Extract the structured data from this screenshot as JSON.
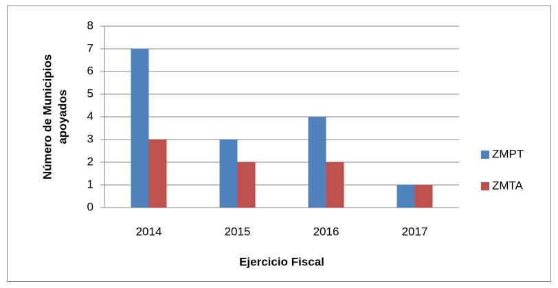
{
  "chart_data": {
    "type": "bar",
    "y_label": [
      "Número de Municipios",
      "apoyados"
    ],
    "x_label": "Ejercicio Fiscal",
    "categories": [
      "2014",
      "2015",
      "2016",
      "2017"
    ],
    "series": [
      {
        "name": "ZMPT",
        "color": "#4f81bd",
        "values": [
          7,
          3,
          4,
          1
        ]
      },
      {
        "name": "ZMTA",
        "color": "#c0504d",
        "values": [
          3,
          2,
          2,
          1
        ]
      }
    ],
    "ylim": [
      0,
      8
    ],
    "yticks": [
      0,
      1,
      2,
      3,
      4,
      5,
      6,
      7,
      8
    ],
    "grid": true,
    "legend": "right"
  }
}
